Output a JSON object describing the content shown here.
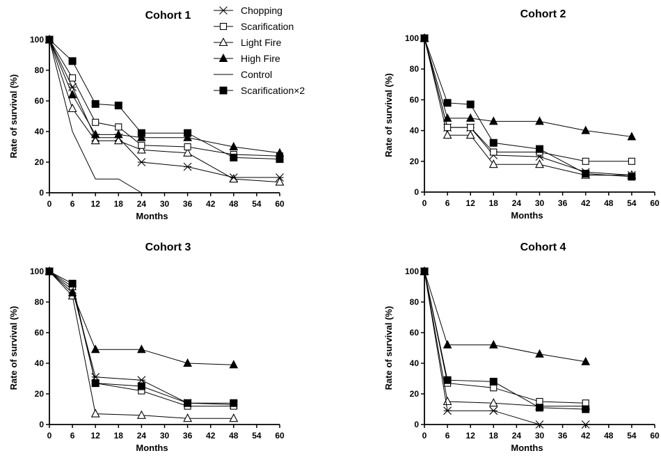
{
  "chart_data": [
    {
      "type": "line",
      "title": "Cohort 1",
      "xlabel": "Months",
      "ylabel": "Rate of survival (%)",
      "xlim": [
        0,
        60
      ],
      "ylim": [
        0,
        100
      ],
      "xticks": [
        0,
        6,
        12,
        18,
        24,
        30,
        36,
        42,
        48,
        54,
        60
      ],
      "yticks": [
        0,
        20,
        40,
        60,
        80,
        100
      ],
      "series": [
        {
          "name": "Chopping",
          "x": [
            0,
            6,
            12,
            18,
            24,
            36,
            48,
            60
          ],
          "values": [
            100,
            69,
            36,
            36,
            20,
            17,
            10,
            10
          ]
        },
        {
          "name": "Scarification",
          "x": [
            0,
            6,
            12,
            18,
            24,
            36,
            48,
            60
          ],
          "values": [
            100,
            75,
            46,
            43,
            31,
            30,
            25,
            24
          ]
        },
        {
          "name": "Light Fire",
          "x": [
            0,
            6,
            12,
            18,
            24,
            36,
            48,
            60
          ],
          "values": [
            100,
            55,
            34,
            34,
            28,
            26,
            9,
            7
          ]
        },
        {
          "name": "High Fire",
          "x": [
            0,
            6,
            12,
            18,
            24,
            36,
            48,
            60
          ],
          "values": [
            100,
            64,
            38,
            38,
            36,
            36,
            30,
            26
          ]
        },
        {
          "name": "Control",
          "x": [
            0,
            6,
            12,
            18,
            24
          ],
          "values": [
            100,
            40,
            9,
            9,
            0
          ]
        },
        {
          "name": "Scarification×2",
          "x": [
            0,
            6,
            12,
            18,
            24,
            36,
            48,
            60
          ],
          "values": [
            100,
            86,
            58,
            57,
            39,
            39,
            23,
            22
          ]
        }
      ]
    },
    {
      "type": "line",
      "title": "Cohort 2",
      "xlabel": "Months",
      "ylabel": "Rate of survival (%)",
      "xlim": [
        0,
        60
      ],
      "ylim": [
        0,
        100
      ],
      "xticks": [
        0,
        6,
        12,
        18,
        24,
        30,
        36,
        42,
        48,
        54,
        60
      ],
      "yticks": [
        0,
        20,
        40,
        60,
        80,
        100
      ],
      "series": [
        {
          "name": "Chopping",
          "x": [
            0,
            6,
            12,
            18,
            30,
            42,
            54
          ],
          "values": [
            100,
            42,
            42,
            24,
            23,
            13,
            11
          ]
        },
        {
          "name": "Scarification",
          "x": [
            0,
            6,
            12,
            18,
            30,
            42,
            54
          ],
          "values": [
            100,
            42,
            42,
            26,
            26,
            20,
            20
          ]
        },
        {
          "name": "Light Fire",
          "x": [
            0,
            6,
            12,
            18,
            30,
            42,
            54
          ],
          "values": [
            100,
            37,
            37,
            18,
            18,
            11,
            11
          ]
        },
        {
          "name": "High Fire",
          "x": [
            0,
            6,
            12,
            18,
            30,
            42,
            54
          ],
          "values": [
            100,
            48,
            48,
            46,
            46,
            40,
            36
          ]
        },
        {
          "name": "Scarification×2",
          "x": [
            0,
            6,
            12,
            18,
            30,
            42,
            54
          ],
          "values": [
            100,
            58,
            57,
            32,
            28,
            12,
            10
          ]
        }
      ]
    },
    {
      "type": "line",
      "title": "Cohort 3",
      "xlabel": "Months",
      "ylabel": "Rate of survival (%)",
      "xlim": [
        0,
        60
      ],
      "ylim": [
        0,
        100
      ],
      "xticks": [
        0,
        6,
        12,
        18,
        24,
        30,
        36,
        42,
        48,
        54,
        60
      ],
      "yticks": [
        0,
        20,
        40,
        60,
        80,
        100
      ],
      "series": [
        {
          "name": "Chopping",
          "x": [
            0,
            6,
            12,
            24,
            36,
            48
          ],
          "values": [
            100,
            88,
            31,
            29,
            14,
            13
          ]
        },
        {
          "name": "Scarification",
          "x": [
            0,
            6,
            12,
            24,
            36,
            48
          ],
          "values": [
            100,
            90,
            27,
            22,
            12,
            12
          ]
        },
        {
          "name": "Light Fire",
          "x": [
            0,
            6,
            12,
            24,
            36,
            48
          ],
          "values": [
            100,
            84,
            7,
            6,
            4,
            4
          ]
        },
        {
          "name": "High Fire",
          "x": [
            0,
            6,
            12,
            24,
            36,
            48
          ],
          "values": [
            100,
            86,
            49,
            49,
            40,
            39
          ]
        },
        {
          "name": "Scarification×2",
          "x": [
            0,
            6,
            12,
            24,
            36,
            48
          ],
          "values": [
            100,
            92,
            27,
            25,
            14,
            14
          ]
        }
      ]
    },
    {
      "type": "line",
      "title": "Cohort 4",
      "xlabel": "Months",
      "ylabel": "Rate of survival (%)",
      "xlim": [
        0,
        60
      ],
      "ylim": [
        0,
        100
      ],
      "xticks": [
        0,
        6,
        12,
        18,
        24,
        30,
        36,
        42,
        48,
        54,
        60
      ],
      "yticks": [
        0,
        20,
        40,
        60,
        80,
        100
      ],
      "series": [
        {
          "name": "Chopping",
          "x": [
            0,
            6,
            18,
            30,
            42
          ],
          "values": [
            100,
            9,
            9,
            0,
            0
          ]
        },
        {
          "name": "Scarification",
          "x": [
            0,
            6,
            18,
            30,
            42
          ],
          "values": [
            100,
            27,
            24,
            15,
            14
          ]
        },
        {
          "name": "Light Fire",
          "x": [
            0,
            6,
            18,
            30,
            42
          ],
          "values": [
            100,
            15,
            14,
            12,
            12
          ]
        },
        {
          "name": "High Fire",
          "x": [
            0,
            6,
            18,
            30,
            42
          ],
          "values": [
            100,
            52,
            52,
            46,
            41
          ]
        },
        {
          "name": "Scarification×2",
          "x": [
            0,
            6,
            18,
            30,
            42
          ],
          "values": [
            100,
            29,
            28,
            11,
            10
          ]
        }
      ]
    }
  ],
  "legend": [
    {
      "label": "Chopping",
      "marker": "star"
    },
    {
      "label": "Scarification",
      "marker": "open-square"
    },
    {
      "label": "Light Fire",
      "marker": "open-triangle"
    },
    {
      "label": "High Fire",
      "marker": "filled-triangle"
    },
    {
      "label": "Control",
      "marker": "none"
    },
    {
      "label": "Scarification×2",
      "marker": "filled-square"
    }
  ]
}
